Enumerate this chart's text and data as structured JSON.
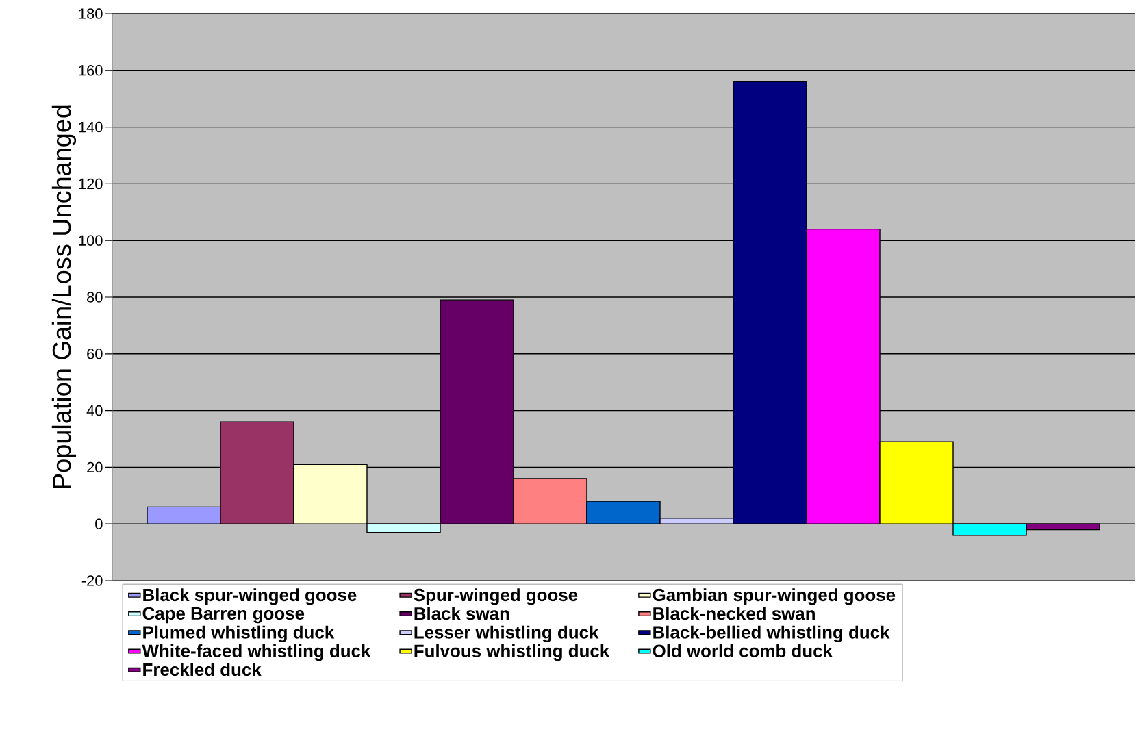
{
  "chart_data": {
    "type": "bar",
    "ylabel": "Population Gain/Loss Unchanged",
    "categories": [
      null
    ],
    "ylim": [
      -20,
      180
    ],
    "yticks": [
      -20,
      0,
      20,
      40,
      60,
      80,
      100,
      120,
      140,
      160,
      180
    ],
    "grid": "y",
    "legend": "bottom",
    "series": [
      {
        "name": "Black spur-winged goose",
        "color": "#9999ff",
        "values": [
          6
        ]
      },
      {
        "name": "Spur-winged goose",
        "color": "#993366",
        "values": [
          36
        ]
      },
      {
        "name": "Gambian spur-winged goose",
        "color": "#ffffcc",
        "values": [
          21
        ]
      },
      {
        "name": "Cape Barren goose",
        "color": "#ccffff",
        "values": [
          -3
        ]
      },
      {
        "name": "Black swan",
        "color": "#660066",
        "values": [
          79
        ]
      },
      {
        "name": "Black-necked swan",
        "color": "#ff8080",
        "values": [
          16
        ]
      },
      {
        "name": "Plumed whistling duck",
        "color": "#0066cc",
        "values": [
          8
        ]
      },
      {
        "name": "Lesser whistling duck",
        "color": "#ccccff",
        "values": [
          2
        ]
      },
      {
        "name": "Black-bellied whistling duck",
        "color": "#000080",
        "values": [
          156
        ]
      },
      {
        "name": "White-faced whistling duck",
        "color": "#ff00ff",
        "values": [
          104
        ]
      },
      {
        "name": "Fulvous whistling duck",
        "color": "#ffff00",
        "values": [
          29
        ]
      },
      {
        "name": "Old world comb duck",
        "color": "#00ffff",
        "values": [
          -4
        ]
      },
      {
        "name": "Freckled duck",
        "color": "#800080",
        "values": [
          -2
        ]
      }
    ]
  }
}
